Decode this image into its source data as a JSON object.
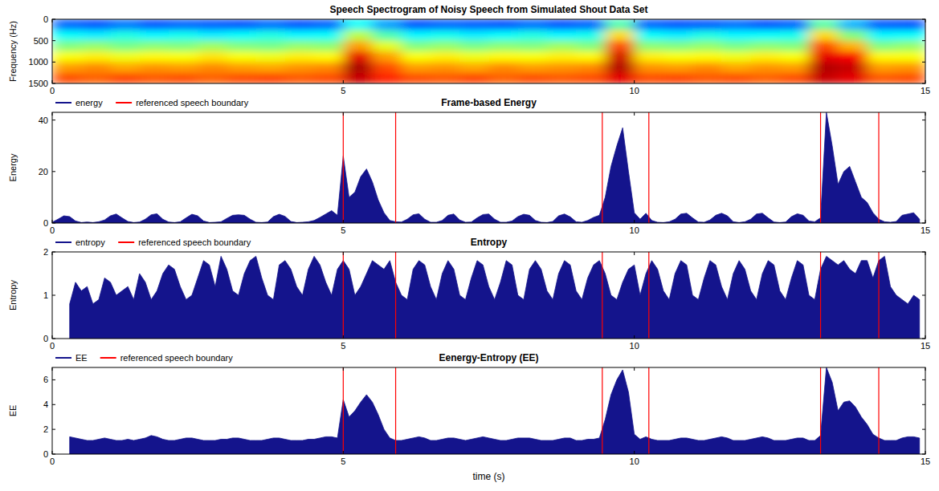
{
  "chart_data": [
    {
      "type": "heatmap",
      "title": "Speech Spectrogram of Noisy Speech from Simulated Shout Data Set",
      "y_label": "Frequency (Hz)",
      "x": [
        0,
        0.5,
        1,
        1.5,
        2,
        2.5,
        3,
        3.5,
        4,
        4.5,
        5,
        5.5,
        6,
        6.5,
        7,
        7.5,
        8,
        8.5,
        9,
        9.5,
        10,
        10.5,
        11,
        11.5,
        12,
        12.5,
        13,
        13.5,
        14,
        14.5,
        15
      ],
      "y": [
        0,
        250,
        500,
        750,
        1000,
        1250,
        1500
      ],
      "cells": [
        [
          0.22,
          0.2,
          0.24,
          0.2,
          0.22,
          0.21,
          0.2,
          0.23,
          0.2,
          0.22,
          0.38,
          0.28,
          0.2,
          0.22,
          0.21,
          0.2,
          0.23,
          0.2,
          0.22,
          0.45,
          0.22,
          0.2,
          0.21,
          0.23,
          0.2,
          0.22,
          0.46,
          0.3,
          0.21,
          0.2
        ],
        [
          0.38,
          0.36,
          0.4,
          0.37,
          0.39,
          0.36,
          0.38,
          0.4,
          0.37,
          0.38,
          0.56,
          0.45,
          0.37,
          0.39,
          0.36,
          0.38,
          0.4,
          0.37,
          0.39,
          0.66,
          0.38,
          0.36,
          0.4,
          0.37,
          0.38,
          0.39,
          0.66,
          0.5,
          0.37,
          0.38
        ],
        [
          0.5,
          0.52,
          0.49,
          0.51,
          0.5,
          0.53,
          0.5,
          0.49,
          0.52,
          0.51,
          0.72,
          0.6,
          0.5,
          0.52,
          0.49,
          0.51,
          0.5,
          0.53,
          0.5,
          0.8,
          0.51,
          0.5,
          0.52,
          0.49,
          0.51,
          0.5,
          0.8,
          0.7,
          0.5,
          0.52
        ],
        [
          0.62,
          0.64,
          0.61,
          0.63,
          0.62,
          0.65,
          0.62,
          0.61,
          0.64,
          0.63,
          0.9,
          0.72,
          0.62,
          0.64,
          0.61,
          0.63,
          0.62,
          0.64,
          0.63,
          0.92,
          0.64,
          0.62,
          0.63,
          0.61,
          0.64,
          0.62,
          0.9,
          0.88,
          0.63,
          0.62
        ],
        [
          0.72,
          0.74,
          0.71,
          0.73,
          0.72,
          0.74,
          0.72,
          0.71,
          0.73,
          0.74,
          0.96,
          0.8,
          0.72,
          0.73,
          0.71,
          0.74,
          0.72,
          0.73,
          0.74,
          0.95,
          0.73,
          0.72,
          0.74,
          0.71,
          0.73,
          0.72,
          0.95,
          0.93,
          0.72,
          0.73
        ],
        [
          0.8,
          0.78,
          0.81,
          0.79,
          0.8,
          0.78,
          0.8,
          0.81,
          0.79,
          0.8,
          0.93,
          0.84,
          0.8,
          0.79,
          0.81,
          0.78,
          0.8,
          0.79,
          0.8,
          0.9,
          0.8,
          0.81,
          0.79,
          0.8,
          0.78,
          0.8,
          0.93,
          0.9,
          0.79,
          0.8
        ]
      ],
      "zlim": [
        0,
        1
      ],
      "xlim": [
        0,
        15
      ],
      "ylim": [
        1500,
        0
      ],
      "xticks": [
        0,
        5,
        10,
        15
      ],
      "yticks": [
        0,
        500,
        1000,
        1500
      ]
    },
    {
      "type": "area",
      "title": "Frame-based Energy",
      "y_label": "Energy",
      "x": [
        0,
        0.1,
        0.2,
        0.3,
        0.4,
        0.5,
        0.6,
        0.7,
        0.8,
        0.9,
        1,
        1.1,
        1.2,
        1.3,
        1.4,
        1.5,
        1.6,
        1.7,
        1.8,
        1.9,
        2,
        2.1,
        2.2,
        2.3,
        2.4,
        2.5,
        2.6,
        2.7,
        2.8,
        2.9,
        3,
        3.1,
        3.2,
        3.3,
        3.4,
        3.5,
        3.6,
        3.7,
        3.8,
        3.9,
        4,
        4.1,
        4.2,
        4.3,
        4.4,
        4.5,
        4.6,
        4.7,
        4.8,
        4.9,
        5,
        5.1,
        5.2,
        5.3,
        5.4,
        5.5,
        5.6,
        5.7,
        5.8,
        5.9,
        6,
        6.1,
        6.2,
        6.3,
        6.4,
        6.5,
        6.6,
        6.7,
        6.8,
        6.9,
        7,
        7.1,
        7.2,
        7.3,
        7.4,
        7.5,
        7.6,
        7.7,
        7.8,
        7.9,
        8,
        8.1,
        8.2,
        8.3,
        8.4,
        8.5,
        8.6,
        8.7,
        8.8,
        8.9,
        9,
        9.1,
        9.2,
        9.3,
        9.4,
        9.5,
        9.6,
        9.7,
        9.8,
        9.9,
        10,
        10.1,
        10.2,
        10.3,
        10.4,
        10.5,
        10.6,
        10.7,
        10.8,
        10.9,
        11,
        11.1,
        11.2,
        11.3,
        11.4,
        11.5,
        11.6,
        11.7,
        11.8,
        11.9,
        12,
        12.1,
        12.2,
        12.3,
        12.4,
        12.5,
        12.6,
        12.7,
        12.8,
        12.9,
        13,
        13.1,
        13.2,
        13.3,
        13.4,
        13.5,
        13.6,
        13.7,
        13.8,
        13.9,
        14,
        14.1,
        14.2,
        14.3,
        14.4,
        14.5,
        14.6,
        14.7,
        14.8,
        14.9
      ],
      "series": [
        {
          "name": "energy",
          "color": "#14148c",
          "values": [
            0.3,
            1.5,
            2.8,
            2.5,
            0.8,
            0.2,
            0.4,
            0.2,
            0.5,
            1.2,
            2.8,
            3.5,
            2,
            0.6,
            0.2,
            0.4,
            1.5,
            3.2,
            3.6,
            1.5,
            0.4,
            0.2,
            0.5,
            2,
            3.4,
            2.8,
            0.8,
            0.2,
            0.3,
            0.5,
            1.8,
            3,
            3.2,
            3,
            1.5,
            0.3,
            0.2,
            0.4,
            2.5,
            3.4,
            2.6,
            0.6,
            0.2,
            0.3,
            0.5,
            1,
            2.2,
            3.5,
            4.8,
            3,
            26,
            10,
            12,
            18,
            21,
            16,
            9,
            4,
            1,
            0.5,
            0.4,
            1.5,
            3.2,
            3.6,
            1.5,
            0.3,
            0.3,
            1,
            3,
            3.5,
            1.2,
            0.3,
            0.4,
            2,
            3.3,
            3.5,
            1.5,
            0.3,
            0.3,
            0.8,
            2.5,
            3.4,
            3,
            1,
            0.3,
            0.2,
            0.6,
            2.8,
            3.5,
            2.4,
            0.5,
            0.3,
            1,
            2.2,
            3,
            10,
            22,
            30,
            37,
            20,
            4,
            1.5,
            3.8,
            1,
            0.3,
            0.2,
            0.5,
            1.5,
            3.5,
            3.8,
            2,
            0.4,
            0.3,
            1.2,
            3,
            3.8,
            2.8,
            0.5,
            0.2,
            0.5,
            1.5,
            3.5,
            3.8,
            2,
            0.4,
            0.2,
            0.4,
            2.5,
            3.6,
            3,
            0.8,
            0.5,
            2,
            43,
            30,
            15,
            20,
            22,
            16,
            10,
            8,
            4,
            1.5,
            0.5,
            0.3,
            0.6,
            3,
            3.5,
            4,
            1.5
          ]
        },
        {
          "name": "referenced speech boundary",
          "color": "#ff0000",
          "type": "vline",
          "x": [
            5,
            5.9,
            9.45,
            10.25,
            13.2,
            14.2
          ]
        }
      ],
      "xlim": [
        0,
        15
      ],
      "ylim": [
        0,
        43
      ],
      "xticks": [
        0,
        5,
        10,
        15
      ],
      "yticks": [
        0,
        20,
        40
      ],
      "legend": "top"
    },
    {
      "type": "area",
      "title": "Entropy",
      "y_label": "Entropy",
      "x": [
        0,
        0.1,
        0.2,
        0.3,
        0.4,
        0.5,
        0.6,
        0.7,
        0.8,
        0.9,
        1,
        1.1,
        1.2,
        1.3,
        1.4,
        1.5,
        1.6,
        1.7,
        1.8,
        1.9,
        2,
        2.1,
        2.2,
        2.3,
        2.4,
        2.5,
        2.6,
        2.7,
        2.8,
        2.9,
        3,
        3.1,
        3.2,
        3.3,
        3.4,
        3.5,
        3.6,
        3.7,
        3.8,
        3.9,
        4,
        4.1,
        4.2,
        4.3,
        4.4,
        4.5,
        4.6,
        4.7,
        4.8,
        4.9,
        5,
        5.1,
        5.2,
        5.3,
        5.4,
        5.5,
        5.6,
        5.7,
        5.8,
        5.9,
        6,
        6.1,
        6.2,
        6.3,
        6.4,
        6.5,
        6.6,
        6.7,
        6.8,
        6.9,
        7,
        7.1,
        7.2,
        7.3,
        7.4,
        7.5,
        7.6,
        7.7,
        7.8,
        7.9,
        8,
        8.1,
        8.2,
        8.3,
        8.4,
        8.5,
        8.6,
        8.7,
        8.8,
        8.9,
        9,
        9.1,
        9.2,
        9.3,
        9.4,
        9.5,
        9.6,
        9.7,
        9.8,
        9.9,
        10,
        10.1,
        10.2,
        10.3,
        10.4,
        10.5,
        10.6,
        10.7,
        10.8,
        10.9,
        11,
        11.1,
        11.2,
        11.3,
        11.4,
        11.5,
        11.6,
        11.7,
        11.8,
        11.9,
        12,
        12.1,
        12.2,
        12.3,
        12.4,
        12.5,
        12.6,
        12.7,
        12.8,
        12.9,
        13,
        13.1,
        13.2,
        13.3,
        13.4,
        13.5,
        13.6,
        13.7,
        13.8,
        13.9,
        14,
        14.1,
        14.2,
        14.3,
        14.4,
        14.5,
        14.6,
        14.7,
        14.8,
        14.9
      ],
      "series": [
        {
          "name": "entropy",
          "color": "#14148c",
          "values": [
            null,
            null,
            null,
            0.8,
            1.3,
            1.1,
            1.2,
            0.8,
            0.9,
            1.4,
            1.3,
            1,
            1.1,
            1.2,
            0.9,
            1.5,
            1.3,
            0.9,
            1.1,
            1.5,
            1.7,
            1.6,
            1.2,
            0.9,
            1,
            1.4,
            1.8,
            1.7,
            1.2,
            1.9,
            1.6,
            1.1,
            1,
            1.5,
            1.8,
            1.9,
            1.4,
            1,
            0.9,
            1.7,
            1.8,
            1.6,
            1.2,
            1,
            1.6,
            1.9,
            1.7,
            1.3,
            1,
            1.6,
            1.8,
            1.6,
            1,
            1.2,
            1.5,
            1.8,
            1.7,
            1.6,
            1.8,
            1.3,
            1,
            0.9,
            1.6,
            1.8,
            1.7,
            1.2,
            0.9,
            1.5,
            1.8,
            1.6,
            1,
            0.9,
            1.4,
            1.8,
            1.7,
            1.2,
            0.9,
            1.3,
            1.8,
            1.7,
            1,
            0.9,
            1.6,
            1.8,
            1.6,
            1.1,
            0.9,
            1.5,
            1.8,
            1.7,
            1.1,
            0.9,
            1.4,
            1.7,
            1.8,
            1.5,
            1,
            0.9,
            1.3,
            1.6,
            1.7,
            1,
            1.5,
            1.8,
            1.6,
            1.1,
            0.9,
            1.5,
            1.8,
            1.7,
            1,
            0.9,
            1.4,
            1.8,
            1.7,
            1.2,
            0.9,
            1.5,
            1.8,
            1.6,
            1.1,
            0.9,
            1.5,
            1.8,
            1.7,
            1.1,
            0.9,
            1.4,
            1.8,
            1.7,
            1,
            0.9,
            1.6,
            1.9,
            1.8,
            1.7,
            1.8,
            1.6,
            1.5,
            1.8,
            1.8,
            1.4,
            1.8,
            1.9,
            1.2,
            1,
            0.9,
            0.8,
            1,
            0.9
          ]
        },
        {
          "name": "referenced speech boundary",
          "color": "#ff0000",
          "type": "vline",
          "x": [
            5,
            5.9,
            9.45,
            10.25,
            13.2,
            14.2
          ]
        }
      ],
      "xlim": [
        0,
        15
      ],
      "ylim": [
        0,
        2
      ],
      "xticks": [
        0,
        5,
        10,
        15
      ],
      "yticks": [
        0,
        1,
        2
      ],
      "legend": "top"
    },
    {
      "type": "area",
      "title": "Eenergy-Entropy (EE)",
      "y_label": "EE",
      "x_label": "time (s)",
      "x": [
        0,
        0.1,
        0.2,
        0.3,
        0.4,
        0.5,
        0.6,
        0.7,
        0.8,
        0.9,
        1,
        1.1,
        1.2,
        1.3,
        1.4,
        1.5,
        1.6,
        1.7,
        1.8,
        1.9,
        2,
        2.1,
        2.2,
        2.3,
        2.4,
        2.5,
        2.6,
        2.7,
        2.8,
        2.9,
        3,
        3.1,
        3.2,
        3.3,
        3.4,
        3.5,
        3.6,
        3.7,
        3.8,
        3.9,
        4,
        4.1,
        4.2,
        4.3,
        4.4,
        4.5,
        4.6,
        4.7,
        4.8,
        4.9,
        5,
        5.1,
        5.2,
        5.3,
        5.4,
        5.5,
        5.6,
        5.7,
        5.8,
        5.9,
        6,
        6.1,
        6.2,
        6.3,
        6.4,
        6.5,
        6.6,
        6.7,
        6.8,
        6.9,
        7,
        7.1,
        7.2,
        7.3,
        7.4,
        7.5,
        7.6,
        7.7,
        7.8,
        7.9,
        8,
        8.1,
        8.2,
        8.3,
        8.4,
        8.5,
        8.6,
        8.7,
        8.8,
        8.9,
        9,
        9.1,
        9.2,
        9.3,
        9.4,
        9.5,
        9.6,
        9.7,
        9.8,
        9.9,
        10,
        10.1,
        10.2,
        10.3,
        10.4,
        10.5,
        10.6,
        10.7,
        10.8,
        10.9,
        11,
        11.1,
        11.2,
        11.3,
        11.4,
        11.5,
        11.6,
        11.7,
        11.8,
        11.9,
        12,
        12.1,
        12.2,
        12.3,
        12.4,
        12.5,
        12.6,
        12.7,
        12.8,
        12.9,
        13,
        13.1,
        13.2,
        13.3,
        13.4,
        13.5,
        13.6,
        13.7,
        13.8,
        13.9,
        14,
        14.1,
        14.2,
        14.3,
        14.4,
        14.5,
        14.6,
        14.7,
        14.8,
        14.9
      ],
      "series": [
        {
          "name": "EE",
          "color": "#14148c",
          "values": [
            null,
            null,
            null,
            1.4,
            1.3,
            1.2,
            1.1,
            1.1,
            1.2,
            1.3,
            1.2,
            1.1,
            1.1,
            1.2,
            1.1,
            1.2,
            1.3,
            1.5,
            1.4,
            1.2,
            1.1,
            1.1,
            1.2,
            1.3,
            1.3,
            1.2,
            1.1,
            1.1,
            1.1,
            1.2,
            1.2,
            1.3,
            1.3,
            1.2,
            1.1,
            1.1,
            1.1,
            1.2,
            1.3,
            1.3,
            1.2,
            1.1,
            1.1,
            1.1,
            1.2,
            1.2,
            1.3,
            1.4,
            1.4,
            1.3,
            4.4,
            3,
            3.5,
            4.2,
            4.8,
            4.2,
            3.2,
            2,
            1.3,
            1.1,
            1.1,
            1.2,
            1.3,
            1.4,
            1.3,
            1.1,
            1.1,
            1.2,
            1.3,
            1.3,
            1.2,
            1.1,
            1.2,
            1.3,
            1.4,
            1.3,
            1.2,
            1.1,
            1.1,
            1.2,
            1.3,
            1.3,
            1.3,
            1.2,
            1.1,
            1.1,
            1.1,
            1.2,
            1.3,
            1.3,
            1.1,
            1.1,
            1.2,
            1.2,
            1.3,
            2.8,
            4.8,
            6,
            6.8,
            5,
            1.6,
            1.2,
            1.4,
            1.2,
            1.1,
            1.1,
            1.1,
            1.2,
            1.3,
            1.3,
            1.2,
            1.1,
            1.1,
            1.2,
            1.3,
            1.4,
            1.3,
            1.1,
            1.1,
            1.1,
            1.2,
            1.3,
            1.4,
            1.3,
            1.1,
            1.1,
            1.1,
            1.2,
            1.3,
            1.3,
            1.1,
            1.1,
            1.5,
            7,
            5.8,
            3.5,
            4.2,
            4.3,
            3.8,
            3,
            2.4,
            1.6,
            1.3,
            1.1,
            1.1,
            1.1,
            1.3,
            1.4,
            1.4,
            1.3
          ]
        },
        {
          "name": "referenced speech boundary",
          "color": "#ff0000",
          "type": "vline",
          "x": [
            5,
            5.9,
            9.45,
            10.25,
            13.2,
            14.2
          ]
        }
      ],
      "xlim": [
        0,
        15
      ],
      "ylim": [
        0,
        7
      ],
      "xticks": [
        0,
        5,
        10,
        15
      ],
      "yticks": [
        0,
        2,
        4,
        6
      ],
      "legend": "top"
    }
  ]
}
